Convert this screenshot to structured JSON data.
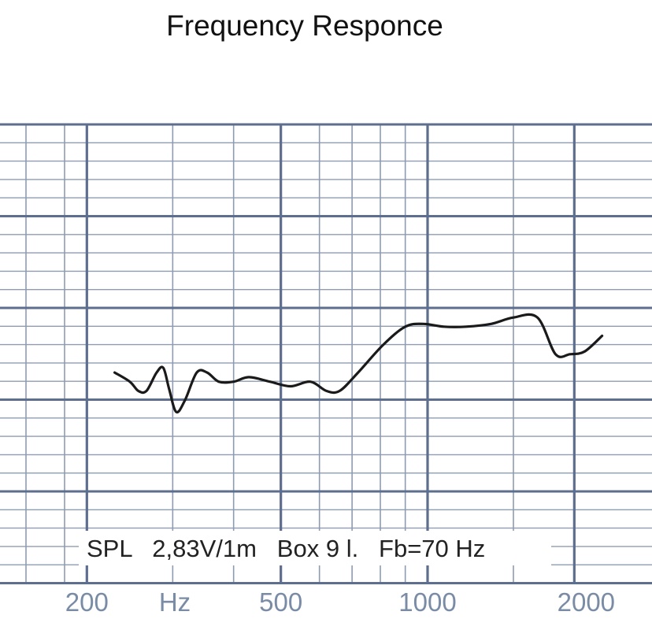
{
  "title": "Frequency Responce",
  "colors": {
    "grid_major": "#5e6e8e",
    "grid_minor": "#8f9bb0",
    "curve": "#1a1a1a",
    "tick_label": "#7a8ca5"
  },
  "chart_data": {
    "type": "line",
    "title": "Frequency Responce",
    "x_scale": "log",
    "xlabel": "Hz",
    "xlim": [
      170,
      2300
    ],
    "x_ticks": [
      {
        "value": 200,
        "label": "200"
      },
      {
        "value": 500,
        "label": "500"
      },
      {
        "value": 1000,
        "label": "1000"
      },
      {
        "value": 2000,
        "label": "2000"
      }
    ],
    "x_unit_label": "Hz",
    "y_grid_major_count": 5,
    "y_grid_minor_per_major": 5,
    "annotation": "SPL   2,83V/1m   Box 9 l.   Fb=70 Hz",
    "grid": true,
    "series": [
      {
        "points": [
          [
            228,
            2.3
          ],
          [
            245,
            2.2
          ],
          [
            255,
            2.1
          ],
          [
            265,
            2.1
          ],
          [
            278,
            2.3
          ],
          [
            287,
            2.35
          ],
          [
            295,
            2.12
          ],
          [
            305,
            1.87
          ],
          [
            318,
            2.0
          ],
          [
            336,
            2.3
          ],
          [
            353,
            2.3
          ],
          [
            373,
            2.2
          ],
          [
            400,
            2.2
          ],
          [
            430,
            2.25
          ],
          [
            475,
            2.2
          ],
          [
            523,
            2.15
          ],
          [
            575,
            2.2
          ],
          [
            620,
            2.1
          ],
          [
            660,
            2.1
          ],
          [
            720,
            2.3
          ],
          [
            810,
            2.6
          ],
          [
            900,
            2.8
          ],
          [
            980,
            2.83
          ],
          [
            1080,
            2.8
          ],
          [
            1200,
            2.8
          ],
          [
            1350,
            2.83
          ],
          [
            1500,
            2.9
          ],
          [
            1680,
            2.9
          ],
          [
            1830,
            2.5
          ],
          [
            1960,
            2.5
          ],
          [
            2100,
            2.53
          ],
          [
            2280,
            2.7
          ]
        ]
      }
    ]
  }
}
